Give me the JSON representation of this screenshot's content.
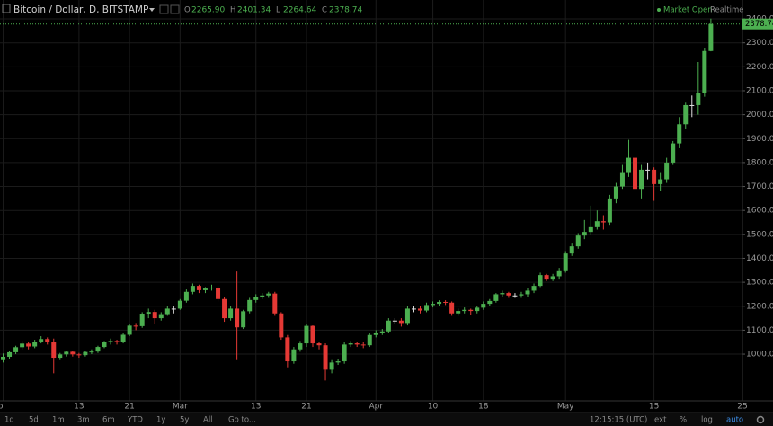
{
  "header": {
    "symbol": "Bitcoin / Dollar, D, BITSTAMP",
    "ohlc": [
      {
        "key": "O",
        "text": "2265.90"
      },
      {
        "key": "H",
        "text": "2401.34"
      },
      {
        "key": "L",
        "text": "2264.64"
      },
      {
        "key": "C",
        "text": "2378.74"
      }
    ],
    "status": "Market Open",
    "feed": "Realtime"
  },
  "toolbar": {
    "ranges": [
      "1d",
      "5d",
      "1m",
      "3m",
      "6m",
      "YTD",
      "1y",
      "5y",
      "All"
    ],
    "goto": "Go to...",
    "clock": "12:15:15 (UTC)",
    "options": [
      "ext",
      "%",
      "log",
      "auto"
    ]
  },
  "chart_data": {
    "type": "candlestick",
    "grid": true,
    "up_color": "#4caf50",
    "down_color": "#e53935",
    "doji_color": "#e0e0e0",
    "last_price_line": true,
    "categories": [
      "b",
      null,
      null,
      null,
      null,
      null,
      null,
      null,
      null,
      null,
      null,
      null,
      "13",
      null,
      null,
      null,
      null,
      null,
      null,
      null,
      "21",
      null,
      null,
      null,
      null,
      null,
      null,
      null,
      "Mar",
      null,
      null,
      null,
      null,
      null,
      null,
      null,
      null,
      null,
      null,
      null,
      "13",
      null,
      null,
      null,
      null,
      null,
      null,
      null,
      "21",
      null,
      null,
      null,
      null,
      null,
      null,
      null,
      null,
      null,
      null,
      "Apr",
      null,
      null,
      null,
      null,
      null,
      null,
      null,
      null,
      "10",
      null,
      null,
      null,
      null,
      null,
      null,
      null,
      "18",
      null,
      null,
      null,
      null,
      null,
      null,
      null,
      null,
      null,
      null,
      null,
      null,
      "May",
      null,
      null,
      null,
      null,
      null,
      null,
      null,
      null,
      null,
      null,
      null,
      null,
      null,
      "15",
      null,
      null,
      null,
      null,
      null,
      null,
      null,
      null,
      null,
      null,
      null,
      null,
      null,
      "25"
    ],
    "open": [
      975,
      989,
      1008,
      1029,
      1044,
      1032,
      1051,
      1063,
      1052,
      985,
      999,
      1010,
      999,
      996,
      1009,
      1011,
      1030,
      1049,
      1055,
      1050,
      1081,
      1119,
      1117,
      1169,
      1176,
      1150,
      1167,
      1190,
      1190,
      1223,
      1260,
      1285,
      1267,
      1274,
      1278,
      1230,
      1150,
      1190,
      1112,
      1179,
      1226,
      1240,
      1245,
      1253,
      1170,
      1070,
      970,
      1020,
      1045,
      1118,
      1045,
      1037,
      935,
      965,
      970,
      1040,
      1045,
      1040,
      1037,
      1080,
      1090,
      1095,
      1140,
      1140,
      1130,
      1190,
      1190,
      1182,
      1205,
      1210,
      1218,
      1215,
      1170,
      1180,
      1185,
      1180,
      1194,
      1210,
      1222,
      1250,
      1255,
      1245,
      1245,
      1250,
      1265,
      1285,
      1330,
      1315,
      1325,
      1350,
      1420,
      1450,
      1495,
      1510,
      1530,
      1555,
      1550,
      1650,
      1700,
      1760,
      1820,
      1690,
      1770,
      1770,
      1710,
      1730,
      1800,
      1880,
      1960,
      2040,
      2040,
      2090,
      2265.9,
      null,
      null,
      null,
      null,
      null
    ],
    "high": [
      1003,
      1015,
      1035,
      1055,
      1050,
      1060,
      1075,
      1070,
      1065,
      1005,
      1015,
      1015,
      1005,
      1015,
      1020,
      1035,
      1055,
      1065,
      1060,
      1090,
      1125,
      1130,
      1175,
      1190,
      1185,
      1175,
      1200,
      1200,
      1230,
      1270,
      1295,
      1290,
      1280,
      1290,
      1285,
      1240,
      1200,
      1345,
      1185,
      1235,
      1250,
      1255,
      1260,
      1260,
      1175,
      1080,
      1030,
      1055,
      1125,
      1120,
      1050,
      1045,
      975,
      980,
      1050,
      1055,
      1050,
      1050,
      1090,
      1100,
      1105,
      1150,
      1150,
      1150,
      1200,
      1200,
      1200,
      1215,
      1220,
      1225,
      1225,
      1220,
      1190,
      1195,
      1190,
      1200,
      1220,
      1230,
      1255,
      1265,
      1260,
      1255,
      1260,
      1275,
      1295,
      1340,
      1335,
      1335,
      1360,
      1430,
      1465,
      1505,
      1560,
      1620,
      1600,
      1580,
      1665,
      1715,
      1790,
      1895,
      1835,
      1790,
      1800,
      1780,
      1760,
      1820,
      1890,
      1990,
      2050,
      2080,
      2220,
      2280,
      2401.34,
      null,
      null,
      null,
      null,
      null
    ],
    "low": [
      965,
      980,
      1000,
      1020,
      1020,
      1025,
      1045,
      1040,
      920,
      975,
      990,
      990,
      985,
      990,
      1000,
      1005,
      1025,
      1040,
      1040,
      1045,
      1075,
      1100,
      1110,
      1150,
      1125,
      1140,
      1160,
      1170,
      1185,
      1215,
      1250,
      1255,
      1255,
      1265,
      1220,
      1135,
      1140,
      975,
      1105,
      1170,
      1215,
      1230,
      1235,
      1160,
      1060,
      945,
      960,
      1010,
      1030,
      1030,
      1020,
      890,
      920,
      955,
      960,
      1030,
      1030,
      1025,
      1030,
      1070,
      1080,
      1090,
      1125,
      1115,
      1120,
      1175,
      1170,
      1175,
      1195,
      1200,
      1205,
      1160,
      1160,
      1170,
      1165,
      1170,
      1185,
      1200,
      1215,
      1240,
      1235,
      1235,
      1235,
      1240,
      1255,
      1280,
      1305,
      1305,
      1315,
      1340,
      1410,
      1440,
      1480,
      1500,
      1520,
      1520,
      1540,
      1630,
      1690,
      1740,
      1600,
      1650,
      1730,
      1640,
      1680,
      1715,
      1790,
      1860,
      1940,
      1990,
      2000,
      2075,
      2264.64,
      null,
      null,
      null,
      null,
      null
    ],
    "close": [
      989,
      1008,
      1029,
      1044,
      1032,
      1051,
      1063,
      1052,
      985,
      999,
      1010,
      999,
      996,
      1009,
      1011,
      1030,
      1049,
      1055,
      1050,
      1081,
      1119,
      1117,
      1169,
      1176,
      1150,
      1167,
      1190,
      1190,
      1223,
      1260,
      1285,
      1267,
      1274,
      1278,
      1230,
      1150,
      1190,
      1112,
      1179,
      1226,
      1240,
      1245,
      1253,
      1170,
      1070,
      970,
      1020,
      1045,
      1118,
      1045,
      1037,
      935,
      965,
      970,
      1040,
      1045,
      1040,
      1037,
      1080,
      1090,
      1095,
      1140,
      1140,
      1130,
      1190,
      1190,
      1182,
      1205,
      1210,
      1218,
      1215,
      1170,
      1180,
      1185,
      1180,
      1194,
      1210,
      1222,
      1250,
      1255,
      1245,
      1245,
      1250,
      1265,
      1285,
      1330,
      1315,
      1325,
      1350,
      1420,
      1450,
      1495,
      1510,
      1530,
      1555,
      1550,
      1650,
      1700,
      1760,
      1820,
      1690,
      1770,
      1770,
      1710,
      1730,
      1800,
      1880,
      1960,
      2040,
      2040,
      2090,
      2265.9,
      2378.74,
      null,
      null,
      null,
      null,
      null
    ],
    "ylim": [
      805,
      2479
    ],
    "yticks": [
      {
        "value": 1000,
        "label": "1000.00"
      },
      {
        "value": 1100,
        "label": "1100.00"
      },
      {
        "value": 1200,
        "label": "1200.00"
      },
      {
        "value": 1300,
        "label": "1300.00"
      },
      {
        "value": 1400,
        "label": "1400.00"
      },
      {
        "value": 1500,
        "label": "1500.00"
      },
      {
        "value": 1600,
        "label": "1600.00"
      },
      {
        "value": 1700,
        "label": "1700.00"
      },
      {
        "value": 1800,
        "label": "1800.00"
      },
      {
        "value": 1900,
        "label": "1900.00"
      },
      {
        "value": 2000,
        "label": "2000.00"
      },
      {
        "value": 2100,
        "label": "2100.00"
      },
      {
        "value": 2200,
        "label": "2200.00"
      },
      {
        "value": 2300,
        "label": "2300.00"
      },
      {
        "value": 2400,
        "label": "2400.00"
      }
    ]
  }
}
